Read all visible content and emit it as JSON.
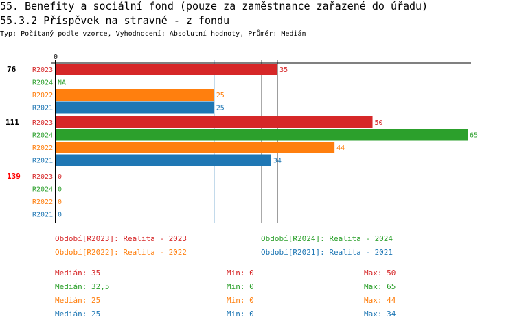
{
  "title": "55. Benefity a sociální fond (pouze za zaměstnance zařazené do úřadu)",
  "subtitle": "55.3.2 Příspěvek na stravné - z fondu",
  "description": "Typ: Počítaný podle vzorce, Vyhodnocení: Absolutní hodnoty, Průměr: Medián",
  "chart_data": {
    "type": "bar",
    "orientation": "horizontal",
    "xlim": [
      0,
      65
    ],
    "x_tick_labels": [
      "0"
    ],
    "series_names": [
      "R2023",
      "R2024",
      "R2022",
      "R2021"
    ],
    "colors": {
      "R2023": "#d62728",
      "R2024": "#2ca02c",
      "R2022": "#ff7f0e",
      "R2021": "#1f77b4"
    },
    "groups": [
      {
        "label": "76",
        "label_color": "#000000",
        "values": [
          35,
          null,
          25,
          25
        ],
        "value_labels": [
          "35",
          "NA",
          "25",
          "25"
        ]
      },
      {
        "label": "111",
        "label_color": "#000000",
        "values": [
          50,
          65,
          44,
          34
        ],
        "value_labels": [
          "50",
          "65",
          "44",
          "34"
        ]
      },
      {
        "label": "139",
        "label_color": "#ff0000",
        "values": [
          0,
          0,
          0,
          0
        ],
        "value_labels": [
          "0",
          "0",
          "0",
          "0"
        ]
      }
    ],
    "median_lines": [
      {
        "series": "R2021",
        "value": 25
      },
      {
        "series": "R2024",
        "value": 32.5
      },
      {
        "series": "R2023",
        "value": 35
      }
    ],
    "legend": [
      {
        "series": "R2023",
        "text": "Období[R2023]: Realita - 2023"
      },
      {
        "series": "R2024",
        "text": "Období[R2024]: Realita - 2024"
      },
      {
        "series": "R2022",
        "text": "Období[R2022]: Realita - 2022"
      },
      {
        "series": "R2021",
        "text": "Období[R2021]: Realita - 2021"
      }
    ],
    "stats": [
      {
        "series": "R2023",
        "median": "Medián: 35",
        "min": "Min: 0",
        "max": "Max: 50"
      },
      {
        "series": "R2024",
        "median": "Medián: 32,5",
        "min": "Min: 0",
        "max": "Max: 65"
      },
      {
        "series": "R2022",
        "median": "Medián: 25",
        "min": "Min: 0",
        "max": "Max: 44"
      },
      {
        "series": "R2021",
        "median": "Medián: 25",
        "min": "Min: 0",
        "max": "Max: 34"
      }
    ]
  }
}
